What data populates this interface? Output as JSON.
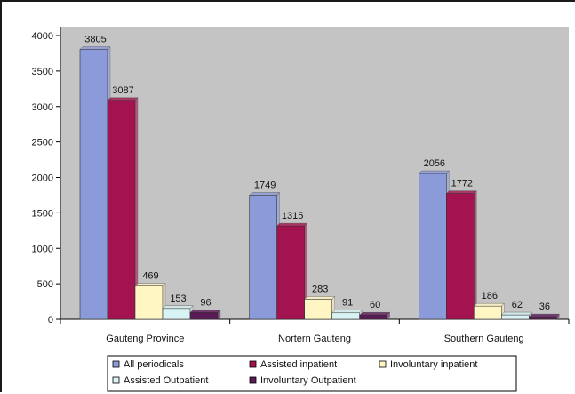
{
  "chart_data": {
    "type": "bar",
    "categories": [
      "Gauteng Province",
      "Nortern Gauteng",
      "Southern Gauteng"
    ],
    "series": [
      {
        "name": "All periodicals",
        "values": [
          3805,
          1749,
          2056
        ]
      },
      {
        "name": "Assisted inpatient",
        "values": [
          3087,
          1315,
          1772
        ]
      },
      {
        "name": "Involuntary inpatient",
        "values": [
          469,
          283,
          186
        ]
      },
      {
        "name": "Assisted Outpatient",
        "values": [
          153,
          91,
          62
        ]
      },
      {
        "name": "Involuntary Outpatient",
        "values": [
          96,
          60,
          36
        ]
      }
    ],
    "ylim": [
      0,
      4000
    ],
    "yticks": [
      0,
      500,
      1000,
      1500,
      2000,
      2500,
      3000,
      3500,
      4000
    ],
    "title": "",
    "xlabel": "",
    "ylabel": "",
    "grid": false,
    "legend_position": "bottom",
    "colors": [
      "#8b9ad8",
      "#a3134f",
      "#fff6c4",
      "#d9f2f4",
      "#5a1a56"
    ],
    "plot_background": "#c4c4c4"
  }
}
